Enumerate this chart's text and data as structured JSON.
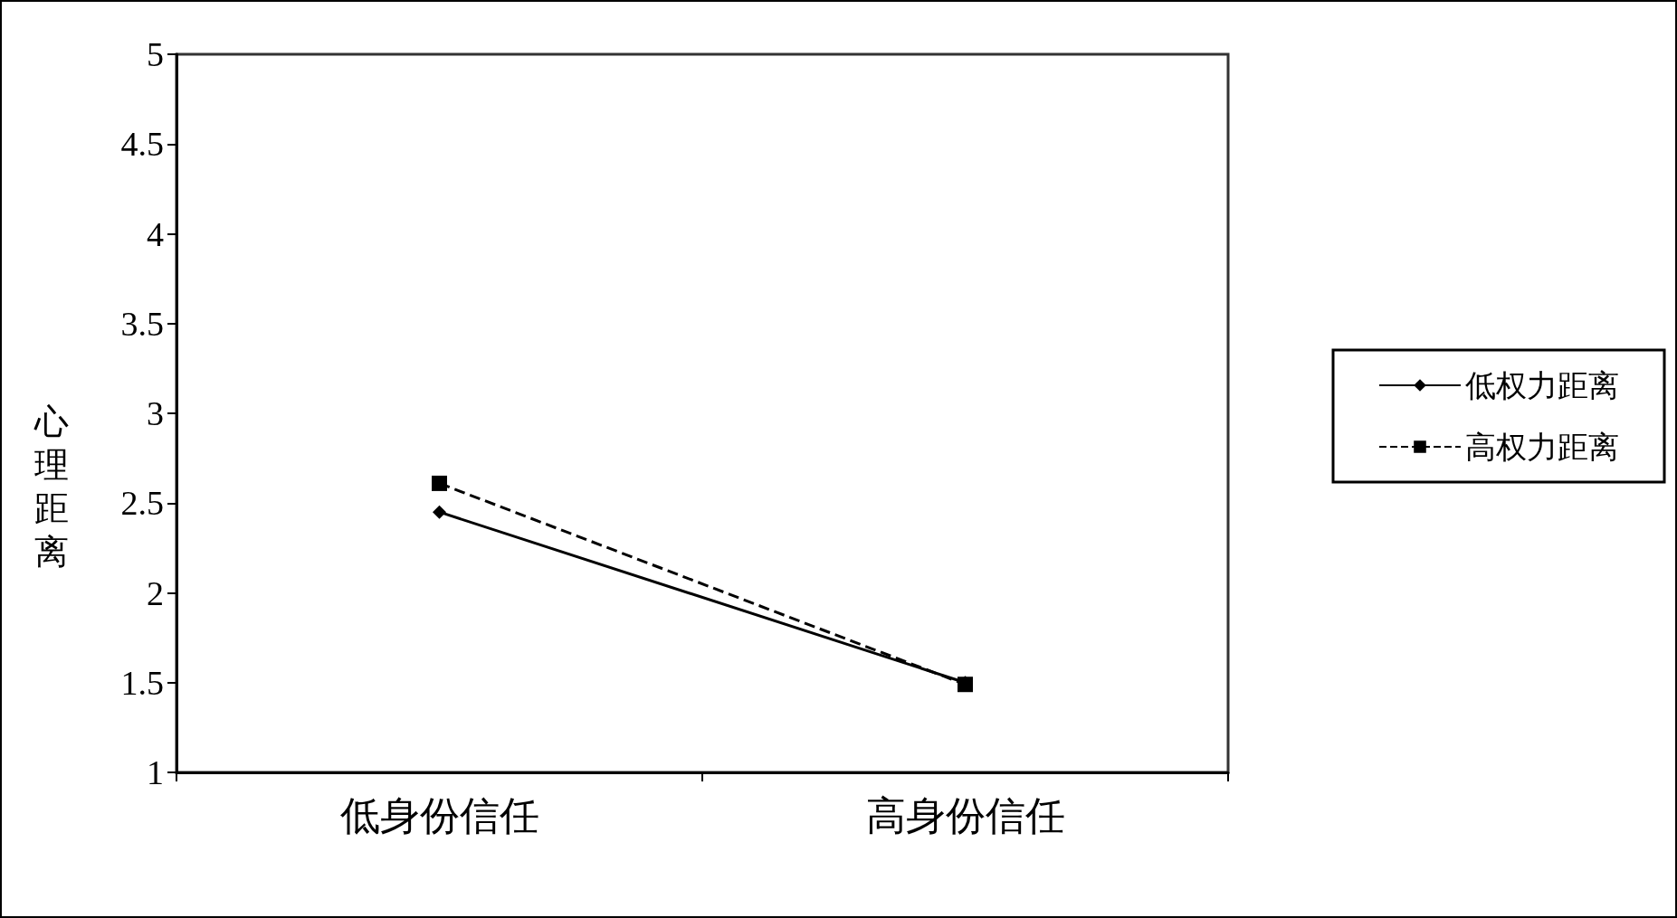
{
  "chart_data": {
    "type": "line",
    "ylabel": "心理距离",
    "categories": [
      "低身份信任",
      "高身份信任"
    ],
    "series": [
      {
        "name": "低权力距离",
        "color": "#000000",
        "values": [
          2.45,
          1.5
        ],
        "marker": "diamond",
        "line_style": "solid"
      },
      {
        "name": "高权力距离",
        "color": "#000000",
        "values": [
          2.61,
          1.49
        ],
        "marker": "square",
        "line_style": "dashed"
      }
    ],
    "ylim": [
      1,
      5
    ],
    "yticks": [
      1,
      1.5,
      2,
      2.5,
      3,
      3.5,
      4,
      4.5,
      5
    ],
    "grid": false,
    "legend": "right"
  }
}
